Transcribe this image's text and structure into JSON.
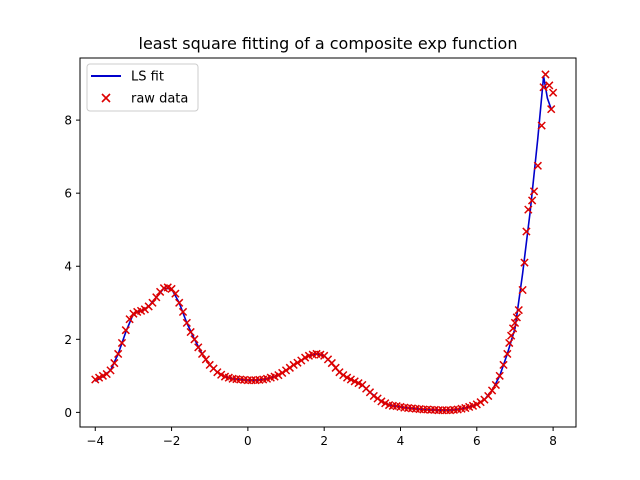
{
  "chart_data": {
    "type": "line",
    "title": "least square fitting of a composite exp function",
    "xlabel": "",
    "ylabel": "",
    "xlim": [
      -4.4,
      8.6
    ],
    "ylim": [
      -0.4,
      9.7
    ],
    "xticks": [
      -4,
      -2,
      0,
      2,
      4,
      6,
      8
    ],
    "yticks": [
      0,
      2,
      4,
      6,
      8
    ],
    "grid": false,
    "legend_position": "top-left",
    "series": [
      {
        "name": "LS fit",
        "kind": "line",
        "color": "#0000cc",
        "x": [
          -4.0,
          -3.8,
          -3.6,
          -3.4,
          -3.2,
          -3.0,
          -2.8,
          -2.6,
          -2.4,
          -2.2,
          -2.0,
          -1.8,
          -1.6,
          -1.4,
          -1.2,
          -1.0,
          -0.8,
          -0.6,
          -0.4,
          -0.2,
          0.0,
          0.2,
          0.4,
          0.6,
          0.8,
          1.0,
          1.2,
          1.4,
          1.6,
          1.8,
          2.0,
          2.2,
          2.4,
          2.6,
          2.8,
          3.0,
          3.2,
          3.4,
          3.6,
          3.8,
          4.0,
          4.2,
          4.4,
          4.6,
          4.8,
          5.0,
          5.2,
          5.4,
          5.6,
          5.8,
          6.0,
          6.2,
          6.4,
          6.6,
          6.8,
          7.0,
          7.2,
          7.4,
          7.6,
          7.75,
          7.85,
          7.95
        ],
        "y": [
          0.85,
          0.98,
          1.15,
          1.6,
          2.2,
          2.7,
          2.78,
          2.9,
          3.15,
          3.4,
          3.38,
          3.0,
          2.45,
          2.0,
          1.6,
          1.3,
          1.1,
          0.98,
          0.92,
          0.9,
          0.88,
          0.88,
          0.9,
          0.95,
          1.02,
          1.15,
          1.3,
          1.42,
          1.55,
          1.6,
          1.55,
          1.35,
          1.1,
          0.95,
          0.85,
          0.75,
          0.55,
          0.38,
          0.25,
          0.18,
          0.15,
          0.12,
          0.1,
          0.08,
          0.07,
          0.06,
          0.06,
          0.07,
          0.1,
          0.15,
          0.22,
          0.35,
          0.6,
          1.0,
          1.6,
          2.3,
          3.8,
          5.5,
          7.5,
          9.2,
          8.6,
          8.3
        ]
      },
      {
        "name": "raw data",
        "kind": "scatter",
        "color": "#dd0000",
        "marker": "x",
        "x": [
          -4.0,
          -3.9,
          -3.8,
          -3.7,
          -3.6,
          -3.5,
          -3.4,
          -3.3,
          -3.2,
          -3.1,
          -3.0,
          -2.9,
          -2.8,
          -2.7,
          -2.6,
          -2.5,
          -2.4,
          -2.3,
          -2.2,
          -2.1,
          -2.0,
          -1.9,
          -1.8,
          -1.7,
          -1.6,
          -1.5,
          -1.4,
          -1.3,
          -1.2,
          -1.1,
          -1.0,
          -0.9,
          -0.8,
          -0.7,
          -0.6,
          -0.5,
          -0.4,
          -0.3,
          -0.2,
          -0.1,
          0.0,
          0.1,
          0.2,
          0.3,
          0.4,
          0.5,
          0.6,
          0.7,
          0.8,
          0.9,
          1.0,
          1.1,
          1.2,
          1.3,
          1.4,
          1.5,
          1.6,
          1.7,
          1.8,
          1.9,
          2.0,
          2.1,
          2.2,
          2.3,
          2.4,
          2.5,
          2.6,
          2.7,
          2.8,
          2.9,
          3.0,
          3.1,
          3.2,
          3.3,
          3.4,
          3.5,
          3.6,
          3.7,
          3.8,
          3.9,
          4.0,
          4.1,
          4.2,
          4.3,
          4.4,
          4.5,
          4.6,
          4.7,
          4.8,
          4.9,
          5.0,
          5.1,
          5.2,
          5.3,
          5.4,
          5.5,
          5.6,
          5.7,
          5.8,
          5.9,
          6.0,
          6.1,
          6.2,
          6.3,
          6.4,
          6.5,
          6.6,
          6.7,
          6.8,
          6.85,
          6.9,
          6.95,
          7.0,
          7.05,
          7.1,
          7.2,
          7.25,
          7.3,
          7.35,
          7.45,
          7.5,
          7.6,
          7.7,
          7.75,
          7.8,
          7.9,
          7.95,
          8.0
        ],
        "y": [
          0.9,
          0.95,
          1.0,
          1.05,
          1.15,
          1.35,
          1.6,
          1.9,
          2.25,
          2.55,
          2.7,
          2.75,
          2.78,
          2.82,
          2.9,
          3.0,
          3.15,
          3.3,
          3.4,
          3.42,
          3.38,
          3.25,
          3.0,
          2.75,
          2.45,
          2.2,
          2.0,
          1.78,
          1.6,
          1.45,
          1.3,
          1.2,
          1.1,
          1.03,
          0.98,
          0.95,
          0.92,
          0.91,
          0.9,
          0.89,
          0.88,
          0.88,
          0.88,
          0.89,
          0.9,
          0.92,
          0.95,
          0.98,
          1.02,
          1.08,
          1.15,
          1.22,
          1.3,
          1.36,
          1.42,
          1.5,
          1.55,
          1.58,
          1.6,
          1.58,
          1.55,
          1.45,
          1.35,
          1.22,
          1.1,
          1.02,
          0.95,
          0.9,
          0.85,
          0.8,
          0.75,
          0.65,
          0.55,
          0.45,
          0.38,
          0.3,
          0.25,
          0.2,
          0.18,
          0.17,
          0.15,
          0.13,
          0.12,
          0.11,
          0.1,
          0.09,
          0.08,
          0.08,
          0.07,
          0.07,
          0.06,
          0.06,
          0.06,
          0.06,
          0.07,
          0.08,
          0.1,
          0.12,
          0.15,
          0.18,
          0.22,
          0.28,
          0.35,
          0.45,
          0.6,
          0.75,
          1.0,
          1.3,
          1.6,
          1.9,
          2.1,
          2.3,
          2.45,
          2.6,
          2.8,
          3.35,
          4.1,
          4.95,
          5.55,
          5.8,
          6.05,
          6.75,
          7.85,
          8.9,
          9.25,
          8.95,
          8.3,
          8.75
        ]
      }
    ]
  }
}
